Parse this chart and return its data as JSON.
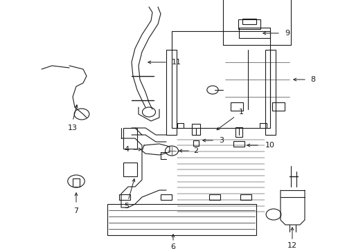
{
  "background_color": "#ffffff",
  "line_color": "#1a1a1a",
  "label_color": "#000000",
  "fig_w": 4.89,
  "fig_h": 3.6,
  "dpi": 100
}
